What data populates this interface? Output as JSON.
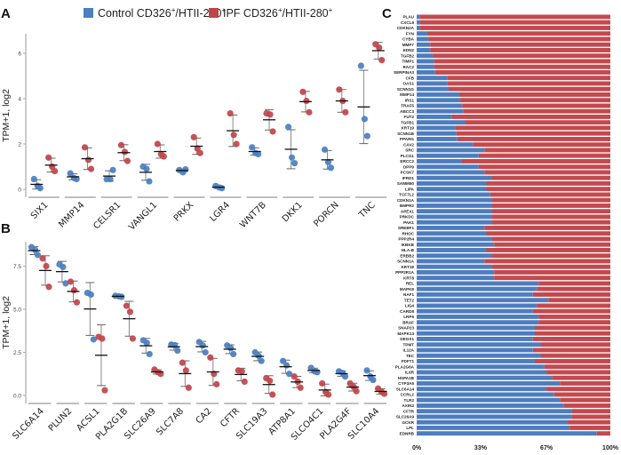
{
  "legend": {
    "items": [
      {
        "label_pre": "Control CD326",
        "sup1": "+",
        "label_mid": "/HTII-280",
        "sup2": "+",
        "color": "#4a7fc0"
      },
      {
        "label_pre": "IPF CD326",
        "sup1": "+",
        "label_mid": "/HTII-280",
        "sup2": "+",
        "color": "#c0454a"
      }
    ]
  },
  "colors": {
    "control": "#4a7fc0",
    "ipf": "#c0454a",
    "bar_control": "#4d7dbf",
    "bar_ipf": "#c3494e",
    "axis": "#999999"
  },
  "chart_data": [
    {
      "panel": "A",
      "type": "scatter",
      "title": "",
      "xlabel": "",
      "ylabel": "TPM+1, log2",
      "ylim": [
        -0.3,
        6.8
      ],
      "yticks": [
        0,
        2,
        4,
        6
      ],
      "ytick_labels": [
        "0",
        "2",
        "4",
        "6"
      ],
      "categories": [
        "SIX1",
        "MMP14",
        "CELSR1",
        "VANGL1",
        "PRKX",
        "LGR4",
        "WNT7B",
        "DKK1",
        "PORCN",
        "TNC"
      ],
      "series": [
        {
          "name": "Control CD326+/HTII-280+",
          "values": [
            [
              0.45,
              0.15,
              0.05
            ],
            [
              0.7,
              0.5,
              0.45
            ],
            [
              0.45,
              0.45,
              0.85
            ],
            [
              1.0,
              0.9,
              0.35
            ],
            [
              0.85,
              0.75,
              0.88
            ],
            [
              0.15,
              0.08,
              0.05
            ],
            [
              1.85,
              1.6,
              1.55
            ],
            [
              2.75,
              1.4,
              1.15
            ],
            [
              1.75,
              1.2,
              0.95
            ],
            [
              5.45,
              3.1,
              2.35
            ]
          ]
        },
        {
          "name": "IPF CD326+/HTII-280+",
          "values": [
            [
              1.4,
              1.0,
              0.8
            ],
            [
              1.85,
              1.3,
              0.9
            ],
            [
              1.95,
              1.65,
              1.25
            ],
            [
              2.0,
              1.55,
              1.45
            ],
            [
              2.3,
              1.8,
              1.6
            ],
            [
              3.35,
              2.4,
              2.0
            ],
            [
              3.35,
              3.3,
              2.55
            ],
            [
              4.3,
              3.9,
              3.4
            ],
            [
              4.4,
              3.9,
              3.4
            ],
            [
              6.4,
              6.25,
              5.7
            ]
          ]
        }
      ],
      "error_bars": "mean ± SD",
      "grid": false
    },
    {
      "panel": "B",
      "type": "scatter",
      "title": "",
      "xlabel": "",
      "ylabel": "TPM+1, log2",
      "ylim": [
        -0.6,
        9.2
      ],
      "yticks": [
        0,
        2.5,
        5,
        7.5
      ],
      "ytick_labels": [
        "0.0",
        "2.5",
        "5.0",
        "7.5"
      ],
      "categories": [
        "SLC6A14",
        "PLUN2",
        "ACSL1",
        "PLA2G1B",
        "SLC26A9",
        "SLC7A8",
        "CA2",
        "CFTR",
        "SLC19A3",
        "ATP8A1",
        "SLCO4C1",
        "PLA2G4F",
        "SLC10A4"
      ],
      "series": [
        {
          "name": "Control CD326+/HTII-280+",
          "values": [
            [
              8.6,
              8.45,
              8.15
            ],
            [
              7.6,
              7.45,
              6.5
            ],
            [
              5.95,
              5.85,
              3.25
            ],
            [
              5.78,
              5.75,
              5.72
            ],
            [
              3.2,
              3.05,
              2.4
            ],
            [
              2.95,
              2.92,
              2.6
            ],
            [
              3.1,
              2.9,
              2.5
            ],
            [
              2.9,
              2.75,
              2.4
            ],
            [
              2.5,
              2.3,
              2.0
            ],
            [
              2.0,
              1.75,
              1.25
            ],
            [
              1.6,
              1.4,
              1.35
            ],
            [
              1.4,
              1.3,
              1.1
            ],
            [
              1.45,
              1.1,
              0.9
            ]
          ]
        },
        {
          "name": "IPF CD326+/HTII-280+",
          "values": [
            [
              7.95,
              7.5,
              6.3
            ],
            [
              6.6,
              6.1,
              5.4
            ],
            [
              3.4,
              3.3,
              0.3
            ],
            [
              5.2,
              4.85,
              3.3
            ],
            [
              1.5,
              1.35,
              1.25
            ],
            [
              1.9,
              1.45,
              0.45
            ],
            [
              2.2,
              1.25,
              0.65
            ],
            [
              1.45,
              1.4,
              0.8
            ],
            [
              1.0,
              0.85,
              0.05
            ],
            [
              1.1,
              0.8,
              0.45
            ],
            [
              0.7,
              0.2,
              0.05
            ],
            [
              0.7,
              0.5,
              0.25
            ],
            [
              0.4,
              0.2,
              0.1
            ]
          ]
        }
      ],
      "error_bars": "mean ± SD",
      "grid": false
    },
    {
      "panel": "C",
      "type": "bar",
      "orientation": "horizontal",
      "stacked": "percent",
      "title": "",
      "xlabel": "",
      "ylabel": "",
      "xlim": [
        0,
        100
      ],
      "xticks": [
        0,
        33,
        67,
        100
      ],
      "xtick_labels": [
        "0%",
        "33%",
        "67%",
        "100%"
      ],
      "categories": [
        "PLAU",
        "CXCL6",
        "CDKN2A",
        "FYN",
        "CYBA",
        "MMP7",
        "EDN2",
        "TGFB2",
        "TIMP1",
        "RAC2",
        "SERPINA3",
        "CFB",
        "OAS1",
        "SCNN1G",
        "MMP14",
        "IRS1",
        "TRAF5",
        "ABCC3",
        "FUT2",
        "TGFB1",
        "KRT19",
        "SCNN1B",
        "PPARG",
        "CAV2",
        "SRC",
        "PLCG1",
        "ERCC2",
        "DPP9",
        "PCSK7",
        "IFRD1",
        "SAMM50",
        "LIPA",
        "TCF7L2",
        "CDKN1A",
        "BMPR2",
        "APEX1",
        "PRKDC",
        "PAK1",
        "SREBF1",
        "RHOC",
        "PPP2R4",
        "IKBKB",
        "HLA-B",
        "ERBB2",
        "SCNN1A",
        "KRT18",
        "PPP2R1A",
        "KRT8",
        "REL",
        "MAPK8",
        "NAF1",
        "TET2",
        "LIG4",
        "CARD8",
        "LRP6",
        "BRAF",
        "SNAP23",
        "MAPK13",
        "DEGS1",
        "TPMT",
        "IL12A",
        "TEC",
        "FDFT1",
        "PLA2G6A",
        "IL6R",
        "HSPA1B",
        "CYP3A5",
        "SLC6A14",
        "CCRL2",
        "TLR2",
        "AXIN2",
        "CFTR",
        "SLC26A9",
        "GCKR",
        "LPL",
        "EDNRB"
      ],
      "series": [
        {
          "name": "Control",
          "values": [
            1.5,
            1.5,
            1.5,
            5.5,
            6,
            7,
            7,
            8.5,
            9,
            9,
            9.5,
            16,
            16,
            16.5,
            22,
            22.5,
            23.5,
            24,
            18,
            25,
            20,
            20.5,
            21,
            29,
            35,
            32,
            23,
            32,
            35,
            39,
            36,
            36,
            38,
            39,
            39,
            39,
            39,
            39,
            35,
            36,
            39,
            40,
            36,
            39,
            35,
            39,
            40,
            40,
            63,
            62,
            60,
            68,
            62,
            60,
            63,
            63,
            61,
            61,
            60,
            64,
            60,
            64,
            61,
            66,
            67,
            70,
            74,
            67,
            71,
            74,
            76,
            80,
            80,
            78,
            79,
            93
          ]
        },
        {
          "name": "IPF",
          "values_rule": "100 - control"
        }
      ],
      "grid": false
    }
  ],
  "panels": {
    "A": "A",
    "B": "B",
    "C": "C"
  }
}
